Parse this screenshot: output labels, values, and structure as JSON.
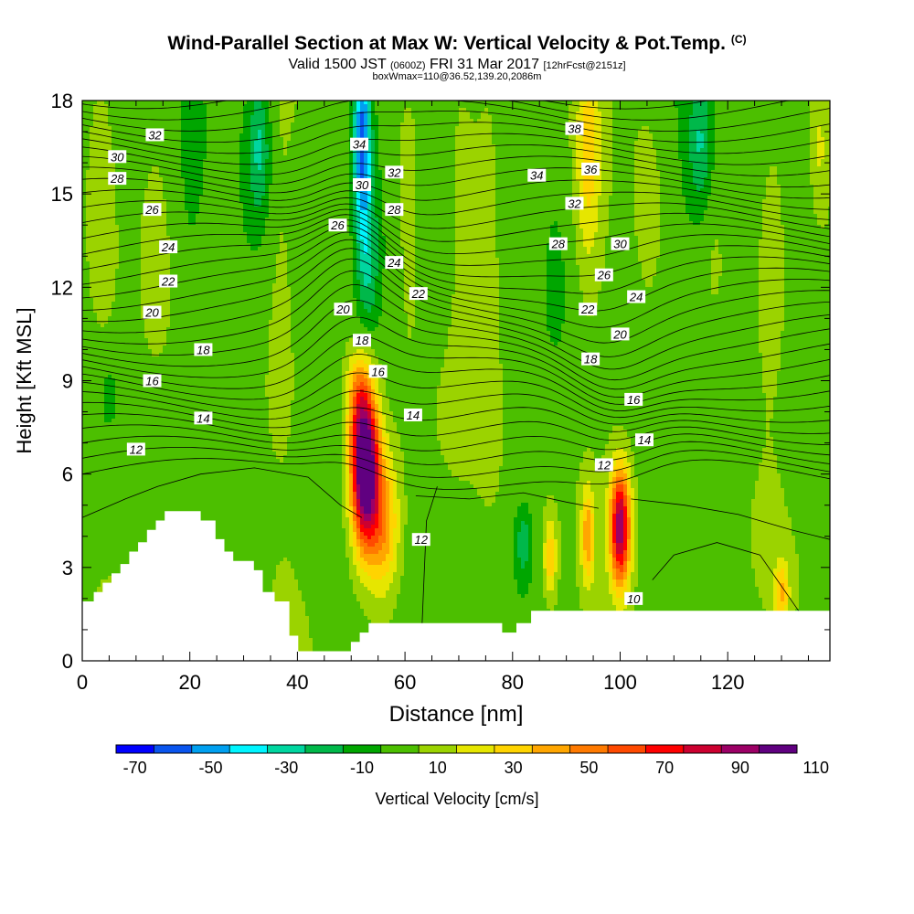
{
  "chart_data": {
    "type": "heatmap",
    "title": "Wind-Parallel Section at Max W: Vertical Velocity & Pot.Temp.",
    "copyright": "(C)",
    "subtitle_parts": [
      "Valid 1500 JST",
      "(0600Z)",
      "FRI 31 Mar 2017",
      "[12hrFcst@2151z]"
    ],
    "subtitle2": "boxWmax=110@36.52,139.20,2086m",
    "xlabel": "Distance [nm]",
    "ylabel": "Height [Kft MSL]",
    "xlim": [
      0,
      139
    ],
    "ylim": [
      0,
      18
    ],
    "xticks": [
      "0",
      "20",
      "40",
      "60",
      "80",
      "100",
      "120"
    ],
    "yticks": [
      "0",
      "3",
      "6",
      "9",
      "12",
      "15",
      "18"
    ],
    "colorbar": {
      "label": "Vertical Velocity [cm/s]",
      "tick_labels": [
        "-70",
        "-50",
        "-30",
        "-10",
        "10",
        "30",
        "50",
        "70",
        "90",
        "110"
      ],
      "colors": [
        "#0000ff",
        "#0a55ee",
        "#00a0f0",
        "#00f5ff",
        "#00d6a0",
        "#00b84a",
        "#00a600",
        "#4cbf00",
        "#9bd300",
        "#e6e600",
        "#ffd400",
        "#ffa600",
        "#ff7a00",
        "#ff4a00",
        "#ff0000",
        "#cc0030",
        "#9c0066",
        "#600080"
      ]
    },
    "velocity_features": [
      {
        "kind": "updraft",
        "x": 52,
        "y": 6.5,
        "max": 110
      },
      {
        "kind": "updraft",
        "x": 100,
        "y": 4.3,
        "max": 85
      },
      {
        "kind": "updraft",
        "x": 94,
        "y": 4.0,
        "max": 40
      },
      {
        "kind": "updraft",
        "x": 87,
        "y": 3.3,
        "max": 30
      },
      {
        "kind": "updraft",
        "x": 130,
        "y": 2.2,
        "max": 30
      },
      {
        "kind": "downdraft",
        "x": 52,
        "y": 17.0,
        "max": -55
      },
      {
        "kind": "downdraft",
        "x": 33,
        "y": 16.5,
        "max": -25
      },
      {
        "kind": "downdraft",
        "x": 115,
        "y": 16.5,
        "max": -25
      },
      {
        "kind": "downdraft",
        "x": 82,
        "y": 3.8,
        "max": -25
      }
    ],
    "theta_labels": [
      {
        "text": "32",
        "x": 13.5,
        "y": 16.9
      },
      {
        "text": "30",
        "x": 6.5,
        "y": 16.2
      },
      {
        "text": "28",
        "x": 6.5,
        "y": 15.5
      },
      {
        "text": "26",
        "x": 13,
        "y": 14.5
      },
      {
        "text": "24",
        "x": 16,
        "y": 13.3
      },
      {
        "text": "22",
        "x": 16,
        "y": 12.2
      },
      {
        "text": "20",
        "x": 13,
        "y": 11.2
      },
      {
        "text": "18",
        "x": 22.5,
        "y": 10.0
      },
      {
        "text": "16",
        "x": 13,
        "y": 9.0
      },
      {
        "text": "14",
        "x": 22.5,
        "y": 7.8
      },
      {
        "text": "12",
        "x": 10,
        "y": 6.8
      },
      {
        "text": "34",
        "x": 51.5,
        "y": 16.6
      },
      {
        "text": "32",
        "x": 58,
        "y": 15.7
      },
      {
        "text": "30",
        "x": 52,
        "y": 15.3
      },
      {
        "text": "28",
        "x": 58,
        "y": 14.5
      },
      {
        "text": "26",
        "x": 47.5,
        "y": 14.0
      },
      {
        "text": "24",
        "x": 58,
        "y": 12.8
      },
      {
        "text": "22",
        "x": 62.5,
        "y": 11.8
      },
      {
        "text": "20",
        "x": 48.5,
        "y": 11.3
      },
      {
        "text": "18",
        "x": 52,
        "y": 10.3
      },
      {
        "text": "16",
        "x": 55,
        "y": 9.3
      },
      {
        "text": "14",
        "x": 61.5,
        "y": 7.9
      },
      {
        "text": "12",
        "x": 63,
        "y": 3.9
      },
      {
        "text": "38",
        "x": 91.5,
        "y": 17.1
      },
      {
        "text": "36",
        "x": 94.5,
        "y": 15.8
      },
      {
        "text": "34",
        "x": 84.5,
        "y": 15.6
      },
      {
        "text": "32",
        "x": 91.5,
        "y": 14.7
      },
      {
        "text": "30",
        "x": 100,
        "y": 13.4
      },
      {
        "text": "28",
        "x": 88.5,
        "y": 13.4
      },
      {
        "text": "26",
        "x": 97,
        "y": 12.4
      },
      {
        "text": "24",
        "x": 103,
        "y": 11.7
      },
      {
        "text": "22",
        "x": 94,
        "y": 11.3
      },
      {
        "text": "20",
        "x": 100,
        "y": 10.5
      },
      {
        "text": "18",
        "x": 94.5,
        "y": 9.7
      },
      {
        "text": "16",
        "x": 102.5,
        "y": 8.4
      },
      {
        "text": "14",
        "x": 104.5,
        "y": 7.1
      },
      {
        "text": "12",
        "x": 97,
        "y": 6.3
      },
      {
        "text": "10",
        "x": 102.5,
        "y": 2.0
      }
    ],
    "terrain_height": [
      1.9,
      1.9,
      1.9,
      1.9,
      2.2,
      2.2,
      2.2,
      2.5,
      2.5,
      2.5,
      2.8,
      2.8,
      2.8,
      3.1,
      3.1,
      3.1,
      3.5,
      3.5,
      3.5,
      3.8,
      3.8,
      3.8,
      4.2,
      4.2,
      4.2,
      4.5,
      4.5,
      4.5,
      4.8,
      4.8,
      4.8,
      4.8,
      4.8,
      4.8,
      4.8,
      4.8,
      4.8,
      4.8,
      4.8,
      4.8,
      4.5,
      4.5,
      4.5,
      4.5,
      4.5,
      3.9,
      3.9,
      3.9,
      3.5,
      3.5,
      3.5,
      3.2,
      3.2,
      3.2,
      3.2,
      3.2,
      3.2,
      3.2,
      2.9,
      2.9,
      2.9,
      2.2,
      2.2,
      2.2,
      2.2,
      1.9,
      1.9,
      1.9,
      1.9,
      1.9,
      0.8,
      0.8,
      0.8,
      0.3,
      0.3,
      0.3,
      0.3,
      0.3,
      0.3,
      0.3,
      0.3,
      0.3,
      0.3,
      0.3,
      0.3,
      0.3,
      0.3,
      0.3,
      0.3,
      0.3,
      0.3,
      0.6,
      0.6,
      0.6,
      0.9,
      0.9,
      0.9,
      1.2,
      1.2,
      1.2,
      1.2,
      1.2,
      1.2,
      1.2,
      1.2,
      1.2,
      1.2,
      1.2,
      1.2,
      1.2,
      1.2,
      1.2,
      1.2,
      1.2,
      1.2,
      1.2,
      1.2,
      1.2,
      1.2,
      1.2,
      1.2,
      1.2,
      1.2,
      1.2,
      1.2,
      1.2,
      1.2,
      1.2,
      1.2,
      1.2,
      1.2,
      1.2,
      1.2,
      1.2,
      1.2,
      1.2,
      1.2,
      1.2,
      1.2,
      1.2,
      1.2,
      1.2,
      0.9,
      0.9,
      0.9,
      0.9,
      0.9,
      1.2,
      1.2,
      1.2,
      1.2,
      1.2,
      1.6,
      1.6,
      1.6,
      1.6,
      1.6,
      1.6,
      1.6,
      1.6,
      1.6,
      1.6,
      1.6,
      1.6,
      1.6,
      1.6,
      1.6,
      1.6,
      1.6,
      1.6,
      1.6,
      1.6,
      1.6,
      1.6,
      1.6,
      1.6,
      1.6,
      1.6,
      1.6,
      1.6,
      1.6,
      1.6,
      1.6,
      1.6,
      1.6,
      1.6,
      1.6,
      1.6,
      1.6,
      1.6,
      1.6,
      1.6,
      1.6,
      1.6,
      1.6,
      1.6,
      1.6,
      1.6,
      1.6,
      1.6,
      1.6,
      1.6,
      1.6,
      1.6,
      1.6,
      1.6,
      1.6,
      1.6,
      1.6,
      1.6,
      1.6,
      1.6,
      1.6,
      1.6,
      1.6,
      1.6,
      1.6,
      1.6,
      1.6,
      1.6,
      1.6,
      1.6,
      1.6,
      1.6,
      1.6,
      1.6,
      1.6,
      1.6,
      1.6,
      1.6,
      1.6,
      1.6,
      1.6,
      1.6,
      1.6,
      1.6,
      1.6,
      1.6,
      1.6,
      1.6,
      1.6,
      1.6,
      1.6,
      1.6,
      1.6,
      1.6,
      1.6,
      1.6,
      1.6,
      1.6,
      1.6,
      1.6,
      1.6
    ]
  }
}
